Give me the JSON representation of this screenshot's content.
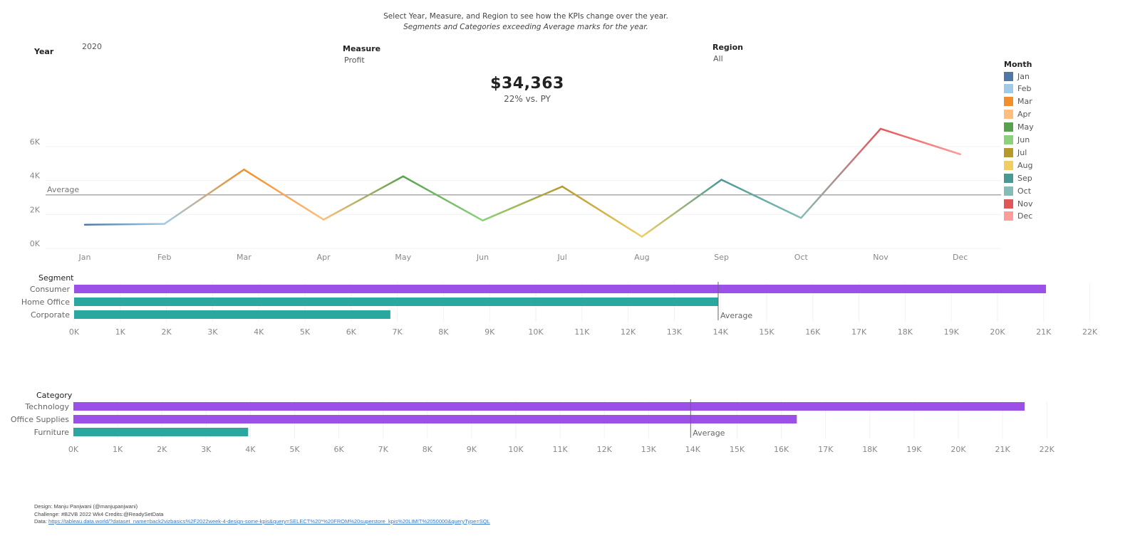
{
  "instructions": {
    "line1": "Select Year, Measure, and Region to see how the KPIs change over the year.",
    "line2": "Segments and Categories exceeding Average marks for the year."
  },
  "controls": {
    "year": {
      "label": "Year",
      "value": "2020"
    },
    "measure": {
      "label": "Measure",
      "value": "Profit"
    },
    "region": {
      "label": "Region",
      "value": "All"
    }
  },
  "kpi": {
    "value": "$34,363",
    "comparison": "22% vs. PY"
  },
  "legend": {
    "title": "Month",
    "items": [
      {
        "label": "Jan",
        "color": "#4e79a7"
      },
      {
        "label": "Feb",
        "color": "#a0cbe8"
      },
      {
        "label": "Mar",
        "color": "#f28e2b"
      },
      {
        "label": "Apr",
        "color": "#ffbe7d"
      },
      {
        "label": "May",
        "color": "#59a14f"
      },
      {
        "label": "Jun",
        "color": "#8cd17d"
      },
      {
        "label": "Jul",
        "color": "#b6992d"
      },
      {
        "label": "Aug",
        "color": "#f1ce63"
      },
      {
        "label": "Sep",
        "color": "#499894"
      },
      {
        "label": "Oct",
        "color": "#86bcb6"
      },
      {
        "label": "Nov",
        "color": "#e15759"
      },
      {
        "label": "Dec",
        "color": "#ff9d9a"
      }
    ]
  },
  "chart_data": [
    {
      "type": "line",
      "categories": [
        "Jan",
        "Feb",
        "Mar",
        "Apr",
        "May",
        "Jun",
        "Jul",
        "Aug",
        "Sep",
        "Oct",
        "Nov",
        "Dec"
      ],
      "values": [
        1100,
        1150,
        4350,
        1400,
        3950,
        1350,
        3350,
        400,
        3750,
        1500,
        6750,
        5250
      ],
      "ylim": [
        0,
        7000
      ],
      "y_ticks": [
        "0K",
        "2K",
        "4K",
        "6K"
      ],
      "y_tick_values": [
        0,
        2000,
        4000,
        6000
      ],
      "reference_line": {
        "label": "Average",
        "value": 2860
      },
      "grid": true
    },
    {
      "type": "bar",
      "orientation": "horizontal",
      "title": "Segment",
      "categories": [
        "Consumer",
        "Home Office",
        "Corporate"
      ],
      "values": [
        21050,
        13950,
        6850
      ],
      "reference_line": {
        "label": "Average",
        "value": 13950
      },
      "above_color": "#9b51e8",
      "below_color": "#2aa89f",
      "xlim": [
        0,
        22000
      ],
      "x_ticks": [
        "0K",
        "1K",
        "2K",
        "3K",
        "4K",
        "5K",
        "6K",
        "7K",
        "8K",
        "9K",
        "10K",
        "11K",
        "12K",
        "13K",
        "14K",
        "15K",
        "16K",
        "17K",
        "18K",
        "19K",
        "20K",
        "21K",
        "22K"
      ]
    },
    {
      "type": "bar",
      "orientation": "horizontal",
      "title": "Category",
      "categories": [
        "Technology",
        "Office Supplies",
        "Furniture"
      ],
      "values": [
        21500,
        16350,
        3950
      ],
      "reference_line": {
        "label": "Average",
        "value": 13950
      },
      "above_color": "#9b51e8",
      "below_color": "#2aa89f",
      "xlim": [
        0,
        22000
      ],
      "x_ticks": [
        "0K",
        "1K",
        "2K",
        "3K",
        "4K",
        "5K",
        "6K",
        "7K",
        "8K",
        "9K",
        "10K",
        "11K",
        "12K",
        "13K",
        "14K",
        "15K",
        "16K",
        "17K",
        "18K",
        "19K",
        "20K",
        "21K",
        "22K"
      ]
    }
  ],
  "footer": {
    "design": "Design: Manju Panjwani (@manjupanjwani)",
    "challenge": "Challenge: #B2VB 2022 Wk4   Credits:@ReadySetData",
    "data_prefix": "Data:",
    "data_link": "https://tableau.data.world/?dataset_name=back2vizbasics%2F2022week-4-design-some-kpis&query=SELECT%20*%20FROM%20superstore_kpis%20LIMIT%2050000&queryType=SQL"
  }
}
